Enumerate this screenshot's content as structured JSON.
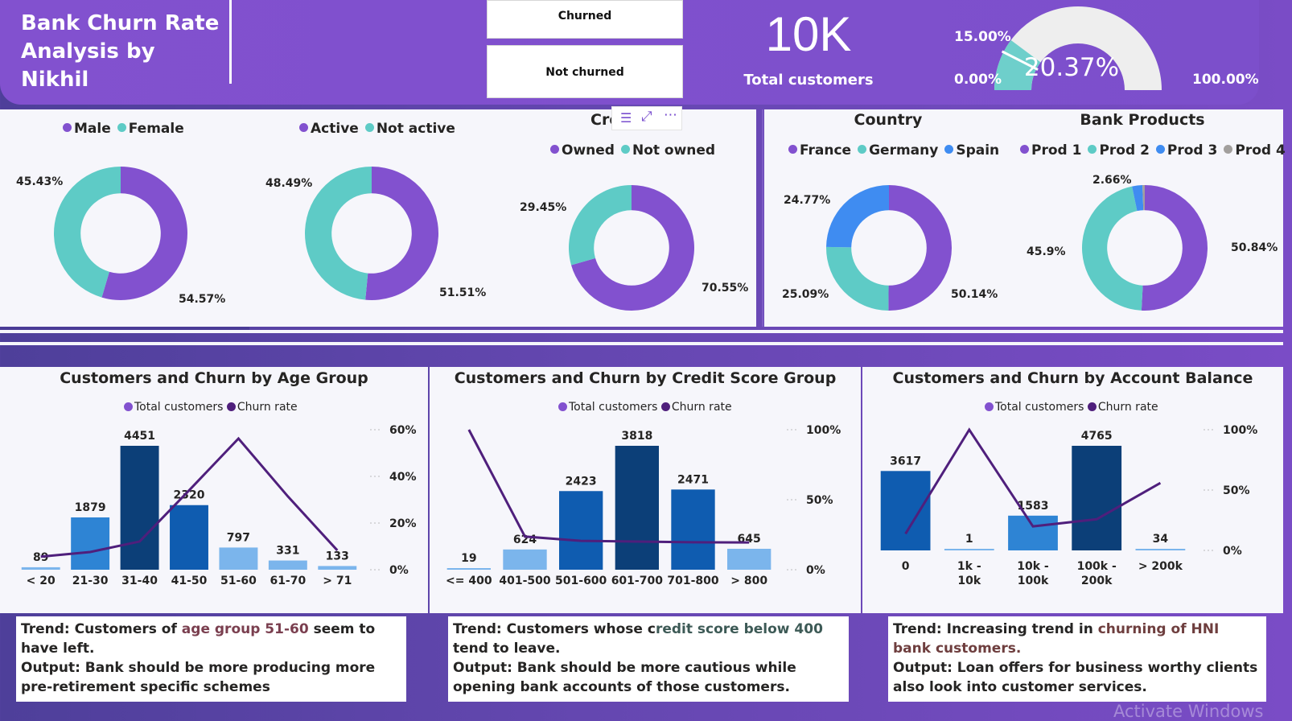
{
  "header": {
    "title": "Bank Churn Rate Analysis by Nikhil",
    "slicer": {
      "churned": "Churned",
      "not_churned": "Not churned"
    },
    "kpi": {
      "value": "10K",
      "label": "Total customers"
    },
    "gauge": {
      "value": "20.37%",
      "target": "15.00%",
      "min": "0.00%",
      "max": "100.00%",
      "value_num": 20.37,
      "target_num": 15,
      "min_num": 0,
      "max_num": 100
    }
  },
  "colors": {
    "purple": "#8251cf",
    "teal": "#5ecbc6",
    "blue": "#3f8cf1",
    "gray": "#a29f9d"
  },
  "donuts": {
    "gender": {
      "legend": [
        "Male",
        "Female"
      ],
      "values": [
        54.57,
        45.43
      ],
      "label_big": "54.57%",
      "label_small": "45.43%"
    },
    "activity": {
      "legend": [
        "Active",
        "Not active"
      ],
      "values": [
        51.51,
        48.49
      ],
      "label_big": "51.51%",
      "label_small": "48.49%"
    },
    "credit": {
      "title": "Cre",
      "legend": [
        "Owned",
        "Not owned"
      ],
      "values": [
        70.55,
        29.45
      ],
      "label_big": "70.55%",
      "label_small": "29.45%"
    },
    "country": {
      "title": "Country",
      "legend": [
        "France",
        "Germany",
        "Spain"
      ],
      "values": [
        50.14,
        25.09,
        24.77
      ],
      "label_1": "50.14%",
      "label_2": "25.09%",
      "label_3": "24.77%"
    },
    "products": {
      "title": "Bank Products",
      "legend": [
        "Prod 1",
        "Prod 2",
        "Prod 3",
        "Prod 4"
      ],
      "values": [
        50.84,
        45.9,
        2.66,
        0.6
      ],
      "label_1": "50.84%",
      "label_2": "45.9%",
      "label_3": "2.66%"
    }
  },
  "charts": {
    "legend": {
      "total": "Total customers",
      "churn": "Churn rate"
    },
    "age": {
      "title": "Customers and Churn by Age Group",
      "categories": [
        "< 20",
        "21-30",
        "31-40",
        "41-50",
        "51-60",
        "61-70",
        "> 71"
      ],
      "values": [
        89,
        1879,
        4451,
        2320,
        797,
        331,
        133
      ],
      "value_labels": [
        "89",
        "1879",
        "4451",
        "2320",
        "797",
        "331",
        "133"
      ],
      "churn": [
        5.6,
        7.6,
        12.1,
        34.0,
        56.2,
        31.4,
        8.3
      ],
      "y2_ticks": [
        "60%",
        "40%",
        "20%",
        "0%"
      ],
      "y2_max": 60
    },
    "credit": {
      "title": "Customers and Churn by Credit Score Group",
      "categories": [
        "<= 400",
        "401-500",
        "501-600",
        "601-700",
        "701-800",
        "> 800"
      ],
      "values": [
        19,
        624,
        2423,
        3818,
        2471,
        645
      ],
      "value_labels": [
        "19",
        "624",
        "2423",
        "3818",
        "2471",
        "645"
      ],
      "churn": [
        100,
        23.7,
        20.6,
        20.1,
        19.6,
        19.5
      ],
      "y2_ticks": [
        "100%",
        "50%",
        "0%"
      ],
      "y2_max": 100
    },
    "balance": {
      "title": "Customers and Churn by Account Balance",
      "categories": [
        "0",
        "1k - 10k",
        "10k - 100k",
        "100k - 200k",
        "> 200k"
      ],
      "values": [
        3617,
        1,
        1583,
        4765,
        34
      ],
      "value_labels": [
        "3617",
        "1",
        "1583",
        "4765",
        "34"
      ],
      "churn": [
        13.8,
        100,
        19.9,
        25.8,
        55.9
      ],
      "y2_ticks": [
        "100%",
        "50%",
        "0%"
      ],
      "y2_max": 100
    }
  },
  "trends": {
    "age": {
      "p1": "Trend: Customers of ",
      "hl": "age group 51-60",
      "p2": " seem to have left.",
      "output": "Output: Bank should be more producing more pre-retirement specific schemes"
    },
    "credit": {
      "p1": "Trend: Customers whose c",
      "hl": "redit score below 400",
      "p2": " tend to leave.",
      "output": "Output: Bank should be more cautious while opening bank accounts of those customers."
    },
    "balance": {
      "p1": "Trend: Increasing trend in ",
      "hl": "churning of HNI bank customers.",
      "p2": "",
      "output": "Output: Loan offers for business worthy clients also look into customer services."
    }
  },
  "watermark": "Activate Windows"
}
